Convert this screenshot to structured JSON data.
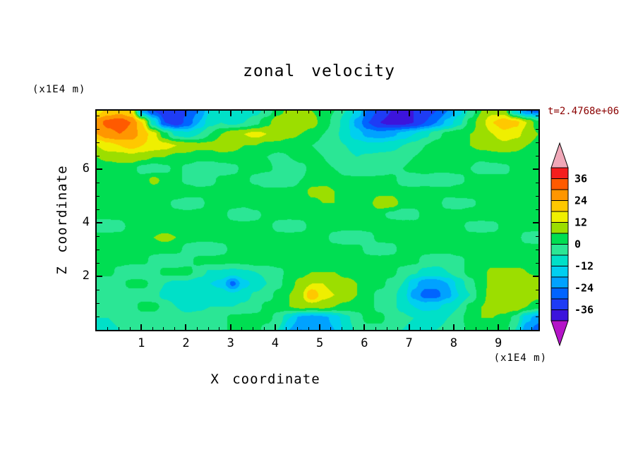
{
  "chart_data": {
    "type": "heatmap",
    "title": "zonal velocity",
    "xlabel": "X coordinate",
    "ylabel": "Z coordinate",
    "x_unit": "(x1E4 m)",
    "y_unit": "(x1E4 m)",
    "timestamp": "t=2.4768e+06",
    "timestamp_color": "#8B0000",
    "background": "#FFFFFF",
    "frame_color": "#000000",
    "xlim": [
      0,
      9.9
    ],
    "ylim": [
      0,
      8.2
    ],
    "x_ticks": [
      1,
      2,
      3,
      4,
      5,
      6,
      7,
      8,
      9
    ],
    "y_ticks": [
      2,
      4,
      6
    ],
    "x_minor_step": 0.25,
    "y_minor_step": 0.5,
    "legend_position": "right-colorbar",
    "grid_lines": false,
    "levels": [
      -42,
      -36,
      -30,
      -24,
      -18,
      -12,
      -6,
      0,
      6,
      12,
      18,
      24,
      30,
      36,
      42
    ],
    "band_colors": [
      "#3C14DC",
      "#1E3CF5",
      "#0064FF",
      "#00A2FF",
      "#00CFF0",
      "#00E0C8",
      "#2BE695",
      "#00DE52",
      "#9CDE00",
      "#EFEF00",
      "#FFC800",
      "#FF9600",
      "#FF5A00",
      "#F51E1E"
    ],
    "under_color": "#B414C8",
    "over_color": "#F0A8B8",
    "colorbar_labels": [
      36,
      24,
      12,
      0,
      -12,
      -24,
      -36
    ],
    "grid": {
      "ncols": 40,
      "nrows": 20,
      "row_order": "top-to-bottom",
      "values": [
        [
          16,
          20,
          22,
          18,
          -20,
          -30,
          -34,
          -34,
          -30,
          -24,
          -12,
          -10,
          -12,
          -10,
          -8,
          -4,
          4,
          8,
          8,
          6,
          4,
          0,
          -6,
          -14,
          -26,
          -32,
          -36,
          -38,
          -36,
          -34,
          -30,
          -24,
          -14,
          -4,
          6,
          10,
          8,
          -12,
          -24,
          -26
        ],
        [
          28,
          32,
          34,
          30,
          18,
          -10,
          -30,
          -34,
          -28,
          -18,
          -8,
          -6,
          -8,
          -6,
          -2,
          4,
          10,
          12,
          10,
          8,
          4,
          -2,
          -10,
          -20,
          -30,
          -36,
          -38,
          -38,
          -36,
          -30,
          -24,
          -16,
          -8,
          2,
          10,
          18,
          22,
          20,
          12,
          2
        ],
        [
          24,
          28,
          30,
          28,
          22,
          14,
          2,
          -8,
          -10,
          -6,
          0,
          6,
          10,
          12,
          14,
          12,
          10,
          8,
          6,
          4,
          0,
          -4,
          -10,
          -16,
          -20,
          -22,
          -20,
          -16,
          -12,
          -8,
          -2,
          2,
          4,
          6,
          8,
          12,
          16,
          14,
          10,
          6
        ],
        [
          12,
          16,
          18,
          20,
          18,
          16,
          14,
          12,
          10,
          8,
          8,
          10,
          8,
          6,
          6,
          4,
          4,
          2,
          2,
          0,
          -2,
          -4,
          -6,
          -8,
          -10,
          -10,
          -8,
          -6,
          -4,
          0,
          2,
          4,
          4,
          6,
          8,
          8,
          10,
          8,
          6,
          4
        ],
        [
          6,
          8,
          8,
          10,
          8,
          6,
          6,
          4,
          4,
          2,
          2,
          4,
          4,
          2,
          2,
          0,
          -2,
          0,
          2,
          2,
          0,
          -4,
          -5,
          -6,
          -5,
          -4,
          -4,
          -2,
          0,
          2,
          2,
          4,
          2,
          2,
          2,
          4,
          4,
          4,
          2,
          2
        ],
        [
          2,
          2,
          4,
          2,
          -2,
          -4,
          -2,
          2,
          -2,
          -4,
          -5,
          -4,
          -2,
          2,
          2,
          2,
          -2,
          -4,
          -2,
          2,
          2,
          0,
          -4,
          -6,
          -6,
          -4,
          -2,
          0,
          2,
          2,
          2,
          2,
          2,
          0,
          -4,
          -4,
          -2,
          2,
          2,
          2
        ],
        [
          4,
          4,
          2,
          2,
          2,
          8,
          4,
          2,
          -2,
          -4,
          -2,
          2,
          2,
          2,
          -2,
          -6,
          -6,
          -4,
          0,
          2,
          4,
          4,
          2,
          2,
          2,
          2,
          2,
          -2,
          -4,
          -2,
          -4,
          -4,
          -2,
          2,
          4,
          4,
          2,
          2,
          2,
          2
        ],
        [
          2,
          2,
          2,
          2,
          2,
          2,
          6,
          6,
          4,
          2,
          2,
          2,
          2,
          4,
          4,
          2,
          2,
          2,
          2,
          8,
          8,
          6,
          2,
          2,
          2,
          4,
          4,
          2,
          2,
          2,
          2,
          2,
          4,
          4,
          4,
          2,
          2,
          2,
          2,
          2
        ],
        [
          4,
          4,
          2,
          2,
          2,
          2,
          2,
          -2,
          -4,
          -2,
          2,
          2,
          2,
          2,
          4,
          4,
          2,
          2,
          2,
          4,
          6,
          6,
          4,
          2,
          4,
          10,
          10,
          4,
          2,
          2,
          2,
          -2,
          -3,
          -2,
          2,
          2,
          2,
          2,
          4,
          4
        ],
        [
          2,
          2,
          2,
          4,
          4,
          4,
          4,
          2,
          2,
          2,
          2,
          2,
          -2,
          -4,
          -2,
          2,
          2,
          2,
          2,
          2,
          4,
          4,
          4,
          2,
          2,
          2,
          -2,
          -4,
          -2,
          2,
          2,
          2,
          2,
          4,
          4,
          4,
          4,
          2,
          2,
          2
        ],
        [
          -3,
          -3,
          -2,
          2,
          2,
          2,
          2,
          2,
          4,
          4,
          4,
          4,
          2,
          2,
          2,
          2,
          -2,
          -3,
          -2,
          2,
          2,
          2,
          2,
          2,
          2,
          4,
          4,
          4,
          2,
          2,
          2,
          2,
          2,
          -2,
          -3,
          -2,
          2,
          2,
          2,
          2
        ],
        [
          2,
          2,
          2,
          2,
          2,
          6,
          8,
          6,
          2,
          2,
          2,
          2,
          2,
          4,
          4,
          4,
          2,
          2,
          2,
          2,
          2,
          -2,
          -4,
          -4,
          -2,
          2,
          2,
          2,
          2,
          2,
          4,
          4,
          4,
          2,
          2,
          2,
          2,
          2,
          -2,
          -3
        ],
        [
          4,
          4,
          2,
          2,
          2,
          2,
          2,
          2,
          -2,
          -4,
          -4,
          -2,
          2,
          2,
          2,
          2,
          4,
          4,
          4,
          2,
          2,
          2,
          2,
          2,
          -2,
          -3,
          -2,
          2,
          2,
          2,
          2,
          2,
          4,
          4,
          4,
          2,
          2,
          2,
          2,
          2
        ],
        [
          2,
          2,
          2,
          2,
          2,
          -2,
          -4,
          -4,
          -2,
          2,
          2,
          2,
          2,
          2,
          4,
          4,
          4,
          2,
          2,
          2,
          2,
          2,
          4,
          4,
          2,
          2,
          2,
          2,
          2,
          -2,
          -4,
          -4,
          -2,
          2,
          2,
          2,
          2,
          2,
          4,
          4
        ],
        [
          2,
          2,
          -2,
          -5,
          -5,
          -3,
          2,
          2,
          2,
          -3,
          -7,
          -7,
          -8,
          -7,
          -6,
          -5,
          -2,
          2,
          4,
          6,
          6,
          6,
          4,
          4,
          2,
          2,
          2,
          -2,
          -5,
          -8,
          -8,
          -6,
          -2,
          2,
          4,
          8,
          8,
          8,
          6,
          4
        ],
        [
          -4,
          -4,
          -2,
          2,
          2,
          -2,
          -6,
          -8,
          -8,
          -10,
          -12,
          -14,
          -26,
          -14,
          -10,
          -6,
          -2,
          4,
          8,
          12,
          12,
          10,
          8,
          6,
          2,
          2,
          -2,
          -6,
          -16,
          -22,
          -22,
          -18,
          -10,
          -2,
          4,
          8,
          10,
          10,
          10,
          12
        ],
        [
          -6,
          -6,
          -4,
          -3,
          -3,
          -4,
          -8,
          -10,
          -10,
          -9,
          -8,
          -8,
          -10,
          -8,
          -5,
          -3,
          2,
          6,
          10,
          24,
          14,
          12,
          10,
          6,
          2,
          -2,
          -4,
          -8,
          -20,
          -26,
          -26,
          -20,
          -12,
          -6,
          4,
          10,
          12,
          12,
          10,
          8
        ],
        [
          -4,
          -4,
          -3,
          -3,
          2,
          2,
          -2,
          -6,
          -8,
          -7,
          -6,
          -6,
          -6,
          -5,
          -3,
          2,
          2,
          6,
          8,
          8,
          8,
          6,
          4,
          2,
          2,
          -2,
          -5,
          -7,
          -12,
          -14,
          -13,
          -10,
          -6,
          2,
          6,
          8,
          10,
          10,
          6,
          2
        ],
        [
          -6,
          -6,
          -5,
          -4,
          -3,
          -3,
          -4,
          -4,
          -4,
          -4,
          -3,
          -2,
          2,
          2,
          2,
          2,
          -2,
          -12,
          -20,
          -22,
          -20,
          -16,
          -8,
          -2,
          2,
          2,
          -3,
          -5,
          -6,
          -8,
          -8,
          -6,
          -2,
          4,
          6,
          6,
          4,
          -2,
          -16,
          -22
        ],
        [
          -8,
          -7,
          -6,
          -5,
          -4,
          -3,
          -3,
          -3,
          -2,
          -2,
          -2,
          -2,
          2,
          2,
          2,
          -2,
          -6,
          -18,
          -24,
          -24,
          -22,
          -18,
          -10,
          -4,
          -2,
          -2,
          -5,
          -6,
          -7,
          -7,
          -6,
          -5,
          -3,
          2,
          4,
          4,
          2,
          -6,
          -22,
          -26
        ]
      ]
    }
  }
}
